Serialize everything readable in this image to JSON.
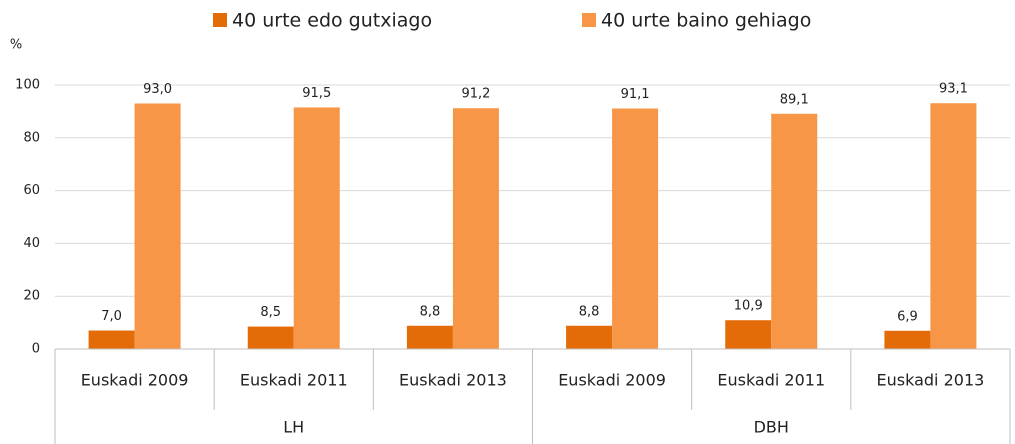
{
  "chart_data": {
    "type": "bar",
    "y_axis_label": "%",
    "groups": [
      {
        "name": "LH",
        "categories": [
          "Euskadi 2009",
          "Euskadi 2011",
          "Euskadi 2013"
        ]
      },
      {
        "name": "DBH",
        "categories": [
          "Euskadi 2009",
          "Euskadi 2011",
          "Euskadi 2013"
        ]
      }
    ],
    "series": [
      {
        "name": "40 urte edo gutxiago",
        "color": "#e36c09",
        "values": [
          7.0,
          8.5,
          8.8,
          8.8,
          10.9,
          6.9
        ],
        "value_labels": [
          "7,0",
          "8,5",
          "8,8",
          "8,8",
          "10,9",
          "6,9"
        ]
      },
      {
        "name": "40 urte baino gehiago",
        "color": "#f79646",
        "values": [
          93.0,
          91.5,
          91.2,
          91.1,
          89.1,
          93.1
        ],
        "value_labels": [
          "93,0",
          "91,5",
          "91,2",
          "91,1",
          "89,1",
          "93,1"
        ]
      }
    ],
    "ylim": [
      0,
      100
    ],
    "yticks": [
      0,
      20,
      40,
      60,
      80,
      100
    ],
    "grid": true,
    "legend": "top"
  }
}
